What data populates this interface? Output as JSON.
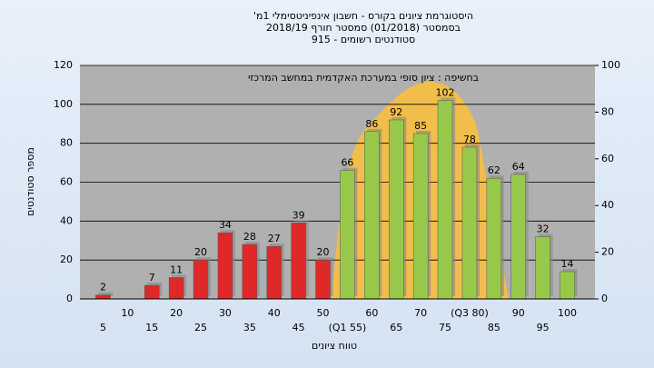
{
  "chart_data": {
    "type": "bar",
    "title": [
      "היסטוגרמת ציונים בקורס - חשבון אינפיניטסימלי 1מ'",
      "בסמסטר (01/2018) סמסטר חורף 2018/19",
      "סטודנטים רשומים - 915"
    ],
    "annotation": "בחשיפה : ציון סופי במערכת האקדמית במחשב המרכזי",
    "x_label": "טווח ציונים",
    "y_label": "מספר סטודנטים",
    "categories": [
      "5",
      "10",
      "15",
      "20",
      "25",
      "30",
      "35",
      "40",
      "45",
      "50",
      "(Q1 55)",
      "60",
      "65",
      "70",
      "75",
      "(Q3 80)",
      "85",
      "90",
      "95",
      "100"
    ],
    "values": [
      2,
      0,
      7,
      11,
      20,
      34,
      28,
      27,
      39,
      20,
      66,
      86,
      92,
      85,
      102,
      78,
      62,
      64,
      32,
      14
    ],
    "value_labels": [
      "2",
      null,
      "7",
      "11",
      "20",
      "34",
      "28",
      "27",
      "39",
      "20",
      "66",
      "86",
      "92",
      "85",
      "102",
      "78",
      "62",
      "64",
      "32",
      "14"
    ],
    "colors": [
      "#e02828",
      "#e02828",
      "#e02828",
      "#e02828",
      "#e02828",
      "#e02828",
      "#e02828",
      "#e02828",
      "#e02828",
      "#e02828",
      "#98c84a",
      "#98c84a",
      "#98c84a",
      "#98c84a",
      "#98c84a",
      "#98c84a",
      "#98c84a",
      "#98c84a",
      "#98c84a",
      "#98c84a"
    ],
    "ylim": [
      0,
      120
    ],
    "yticks": [
      0,
      20,
      40,
      60,
      80,
      100,
      120
    ],
    "y2lim": [
      0,
      100
    ],
    "y2ticks": [
      0,
      20,
      40,
      60,
      80,
      100
    ],
    "grid": true
  }
}
